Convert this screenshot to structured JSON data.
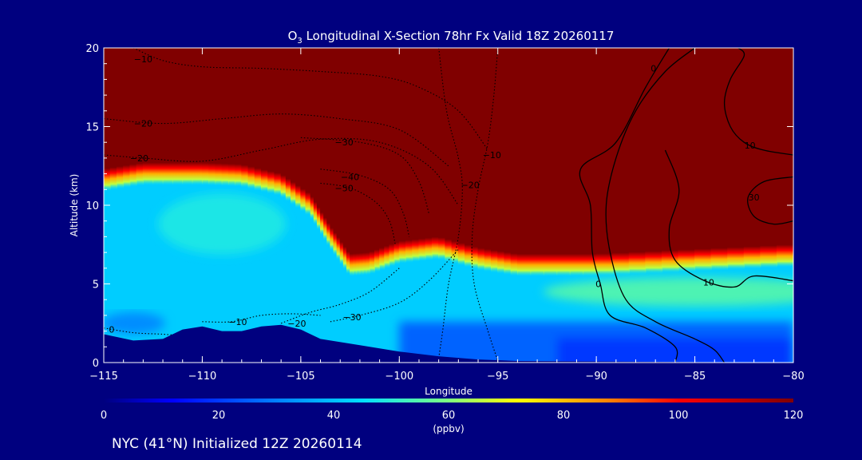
{
  "chart_data": {
    "type": "heatmap",
    "title": "O₃ Longitudinal X-Section 78hr  Fx Valid 18Z 20260117",
    "title_prefix": "O",
    "title_sub": "3",
    "title_rest": " Longitudinal X-Section 78hr  Fx Valid 18Z 20260117",
    "xlabel": "Longitude",
    "ylabel": "Altitude (km)",
    "xlim": [
      -115,
      -80
    ],
    "ylim": [
      0,
      20
    ],
    "x_ticks": [
      -115,
      -110,
      -105,
      -100,
      -95,
      -90,
      -85,
      -80
    ],
    "x_tick_labels": [
      "−115",
      "−110",
      "−105",
      "−100",
      "−95",
      "−90",
      "−85",
      "−80"
    ],
    "y_ticks": [
      0,
      5,
      10,
      15,
      20
    ],
    "y_tick_labels": [
      "0",
      "5",
      "10",
      "15",
      "20"
    ],
    "colorbar": {
      "label": "(ppbv)",
      "range": [
        0,
        120
      ],
      "ticks": [
        0,
        20,
        40,
        60,
        80,
        100,
        120
      ],
      "tick_labels": [
        "0",
        "20",
        "40",
        "60",
        "80",
        "100",
        "120"
      ],
      "stops": [
        {
          "value": 0,
          "color": "#00007f"
        },
        {
          "value": 12,
          "color": "#0000ff"
        },
        {
          "value": 30,
          "color": "#0080ff"
        },
        {
          "value": 45,
          "color": "#00e0ff"
        },
        {
          "value": 60,
          "color": "#80ff80"
        },
        {
          "value": 72,
          "color": "#ffff00"
        },
        {
          "value": 88,
          "color": "#ff8000"
        },
        {
          "value": 100,
          "color": "#ff0000"
        },
        {
          "value": 120,
          "color": "#800000"
        }
      ]
    },
    "ozone_field": {
      "tropopause_height_km": [
        {
          "lon": -115,
          "alt": 11.6
        },
        {
          "lon": -113,
          "alt": 12.0
        },
        {
          "lon": -110,
          "alt": 12.0
        },
        {
          "lon": -108,
          "alt": 11.9
        },
        {
          "lon": -106,
          "alt": 11.3
        },
        {
          "lon": -104.5,
          "alt": 10.0
        },
        {
          "lon": -103.5,
          "alt": 8.0
        },
        {
          "lon": -102.5,
          "alt": 6.2
        },
        {
          "lon": -101.5,
          "alt": 6.3
        },
        {
          "lon": -100,
          "alt": 7.0
        },
        {
          "lon": -98,
          "alt": 7.3
        },
        {
          "lon": -96,
          "alt": 6.6
        },
        {
          "lon": -94,
          "alt": 6.2
        },
        {
          "lon": -90,
          "alt": 6.2
        },
        {
          "lon": -85,
          "alt": 6.5
        },
        {
          "lon": -80,
          "alt": 6.8
        }
      ],
      "stratosphere_ppbv": 120,
      "mid_troposphere_ppbv": 42,
      "upper_troposphere_ppbv": 48,
      "boundary_layer_ppbv": 26
    },
    "terrain_km": [
      {
        "lon": -115,
        "alt": 1.8
      },
      {
        "lon": -113.5,
        "alt": 1.4
      },
      {
        "lon": -112,
        "alt": 1.5
      },
      {
        "lon": -111,
        "alt": 2.1
      },
      {
        "lon": -110,
        "alt": 2.3
      },
      {
        "lon": -109,
        "alt": 2.0
      },
      {
        "lon": -108,
        "alt": 2.0
      },
      {
        "lon": -107,
        "alt": 2.3
      },
      {
        "lon": -106,
        "alt": 2.4
      },
      {
        "lon": -105,
        "alt": 2.1
      },
      {
        "lon": -104,
        "alt": 1.5
      },
      {
        "lon": -102,
        "alt": 1.1
      },
      {
        "lon": -100,
        "alt": 0.7
      },
      {
        "lon": -98,
        "alt": 0.4
      },
      {
        "lon": -96,
        "alt": 0.2
      },
      {
        "lon": -94,
        "alt": 0.1
      },
      {
        "lon": -80,
        "alt": 0.0
      }
    ],
    "contours": [
      {
        "value": -10,
        "label": "−10",
        "style": "dotted",
        "label_at": {
          "lon": -113,
          "alt": 19.3
        },
        "points": [
          [
            -113.5,
            20
          ],
          [
            -112,
            19.2
          ],
          [
            -110,
            18.8
          ],
          [
            -107,
            18.7
          ],
          [
            -104,
            18.5
          ],
          [
            -101,
            18.2
          ],
          [
            -99,
            17.5
          ],
          [
            -97,
            16
          ],
          [
            -95.5,
            13.5
          ]
        ]
      },
      {
        "value": -20,
        "label": "−20",
        "style": "dotted",
        "label_at": {
          "lon": -113,
          "alt": 15.2
        },
        "points": [
          [
            -115,
            15.5
          ],
          [
            -112,
            15.2
          ],
          [
            -109,
            15.5
          ],
          [
            -106,
            15.8
          ],
          [
            -103,
            15.5
          ],
          [
            -100,
            14.8
          ],
          [
            -97.5,
            12.5
          ]
        ]
      },
      {
        "value": -20,
        "label": "−20",
        "style": "dotted",
        "label_at": {
          "lon": -113.2,
          "alt": 13.0
        },
        "points": [
          [
            -115,
            13.2
          ],
          [
            -113,
            13
          ],
          [
            -110,
            12.8
          ],
          [
            -107,
            13.5
          ],
          [
            -104,
            14.2
          ],
          [
            -101,
            14
          ],
          [
            -98.5,
            12.5
          ],
          [
            -97,
            10
          ]
        ]
      },
      {
        "value": -30,
        "label": "−30",
        "style": "dotted",
        "label_at": {
          "lon": -102.8,
          "alt": 14.0
        },
        "points": [
          [
            -105,
            14.3
          ],
          [
            -102,
            14
          ],
          [
            -100,
            13.2
          ],
          [
            -99,
            11.5
          ],
          [
            -98.5,
            9.5
          ]
        ]
      },
      {
        "value": -40,
        "label": "−40",
        "style": "dotted",
        "label_at": {
          "lon": -102.5,
          "alt": 11.8
        },
        "points": [
          [
            -104,
            12.3
          ],
          [
            -102,
            11.9
          ],
          [
            -100.5,
            11
          ],
          [
            -99.8,
            9.5
          ],
          [
            -99.5,
            8
          ]
        ]
      },
      {
        "value": -50,
        "label": "−50",
        "style": "dotted",
        "label_at": {
          "lon": -102.8,
          "alt": 11.1
        },
        "points": [
          [
            -104,
            11.4
          ],
          [
            -102.5,
            11.1
          ],
          [
            -101.2,
            10.2
          ],
          [
            -100.5,
            9
          ],
          [
            -100.2,
            7.5
          ]
        ]
      },
      {
        "value": -10,
        "label": "−10",
        "style": "dotted",
        "label_at": {
          "lon": -108.2,
          "alt": 2.6
        },
        "points": [
          [
            -110,
            2.6
          ],
          [
            -108.5,
            2.6
          ],
          [
            -107,
            3
          ],
          [
            -105.5,
            3.1
          ],
          [
            -104,
            3
          ]
        ]
      },
      {
        "value": -20,
        "label": "−20",
        "style": "dotted",
        "label_at": {
          "lon": -105.2,
          "alt": 2.5
        },
        "points": [
          [
            -106,
            2.5
          ],
          [
            -104.5,
            3.2
          ],
          [
            -103,
            3.7
          ],
          [
            -101.5,
            4.5
          ],
          [
            -100,
            6
          ]
        ]
      },
      {
        "value": -30,
        "label": "−30",
        "style": "dotted",
        "label_at": {
          "lon": -102.4,
          "alt": 2.9
        },
        "points": [
          [
            -103.5,
            2.6
          ],
          [
            -102,
            3
          ],
          [
            -100,
            3.8
          ],
          [
            -98.5,
            5.2
          ],
          [
            -97,
            7.2
          ]
        ]
      },
      {
        "value": 0,
        "label": "0",
        "style": "dotted",
        "label_at": {
          "lon": -114.6,
          "alt": 2.1
        },
        "points": [
          [
            -115,
            2.2
          ],
          [
            -113.5,
            1.9
          ],
          [
            -112,
            1.8
          ],
          [
            -111,
            1.7
          ]
        ]
      },
      {
        "value": -10,
        "label": "−10",
        "style": "dotted",
        "label_at": {
          "lon": -95.3,
          "alt": 13.2
        },
        "points": [
          [
            -95,
            20
          ],
          [
            -95.2,
            17
          ],
          [
            -95.5,
            14
          ],
          [
            -96,
            11
          ],
          [
            -96.3,
            8
          ],
          [
            -96.2,
            5
          ],
          [
            -95.5,
            2
          ],
          [
            -95,
            0.1
          ]
        ]
      },
      {
        "value": -20,
        "label": "−20",
        "style": "dotted",
        "label_at": {
          "lon": -96.4,
          "alt": 11.3
        },
        "points": [
          [
            -98,
            20
          ],
          [
            -97.6,
            16
          ],
          [
            -97,
            13
          ],
          [
            -96.8,
            11
          ],
          [
            -97,
            8
          ],
          [
            -97.5,
            5
          ],
          [
            -97.8,
            2
          ],
          [
            -98,
            0.3
          ]
        ]
      },
      {
        "value": 0,
        "label": "0",
        "style": "solid",
        "label_at": {
          "lon": -89.9,
          "alt": 5.0
        },
        "points": [
          [
            -86.3,
            20
          ],
          [
            -87.5,
            17.5
          ],
          [
            -89,
            14
          ],
          [
            -90.8,
            12.3
          ],
          [
            -90.3,
            10
          ],
          [
            -90.2,
            7
          ],
          [
            -89.8,
            5
          ],
          [
            -89.3,
            3
          ],
          [
            -87.5,
            2.2
          ],
          [
            -86,
            1
          ],
          [
            -86,
            0
          ]
        ]
      },
      {
        "value": 0,
        "label": "0",
        "style": "solid",
        "label_at": {
          "lon": -87.1,
          "alt": 18.7
        },
        "points": [
          [
            -85,
            20
          ],
          [
            -86.5,
            18.5
          ],
          [
            -88,
            16
          ],
          [
            -89,
            13
          ],
          [
            -89.5,
            10
          ],
          [
            -89.3,
            7
          ],
          [
            -88.5,
            4
          ],
          [
            -87,
            2.6
          ],
          [
            -85,
            1.5
          ],
          [
            -84,
            0.8
          ],
          [
            -83.5,
            0
          ]
        ]
      },
      {
        "value": 10,
        "label": "10",
        "style": "solid",
        "label_at": {
          "lon": -84.3,
          "alt": 5.1
        },
        "points": [
          [
            -86.5,
            13.5
          ],
          [
            -85.8,
            11
          ],
          [
            -86.3,
            8.5
          ],
          [
            -86,
            6.5
          ],
          [
            -84.5,
            5.2
          ],
          [
            -83,
            4.8
          ],
          [
            -82,
            5.5
          ],
          [
            -80,
            5.2
          ]
        ]
      },
      {
        "value": 10,
        "label": "10",
        "style": "solid",
        "label_at": {
          "lon": -82.2,
          "alt": 13.8
        },
        "points": [
          [
            -80,
            13.2
          ],
          [
            -81.5,
            13.5
          ],
          [
            -82.5,
            14
          ],
          [
            -83.2,
            15
          ],
          [
            -83.5,
            16.5
          ],
          [
            -83.2,
            18
          ],
          [
            -82.5,
            19.5
          ],
          [
            -82.8,
            20
          ]
        ]
      },
      {
        "value": 30,
        "label": "30",
        "style": "solid",
        "label_at": {
          "lon": -82.0,
          "alt": 10.5
        },
        "points": [
          [
            -80,
            11.8
          ],
          [
            -81.5,
            11.5
          ],
          [
            -82.3,
            10.5
          ],
          [
            -82,
            9.3
          ],
          [
            -81,
            8.8
          ],
          [
            -80,
            9
          ]
        ]
      }
    ]
  },
  "footer_text": "NYC (41°N) Initialized 12Z 20260114"
}
